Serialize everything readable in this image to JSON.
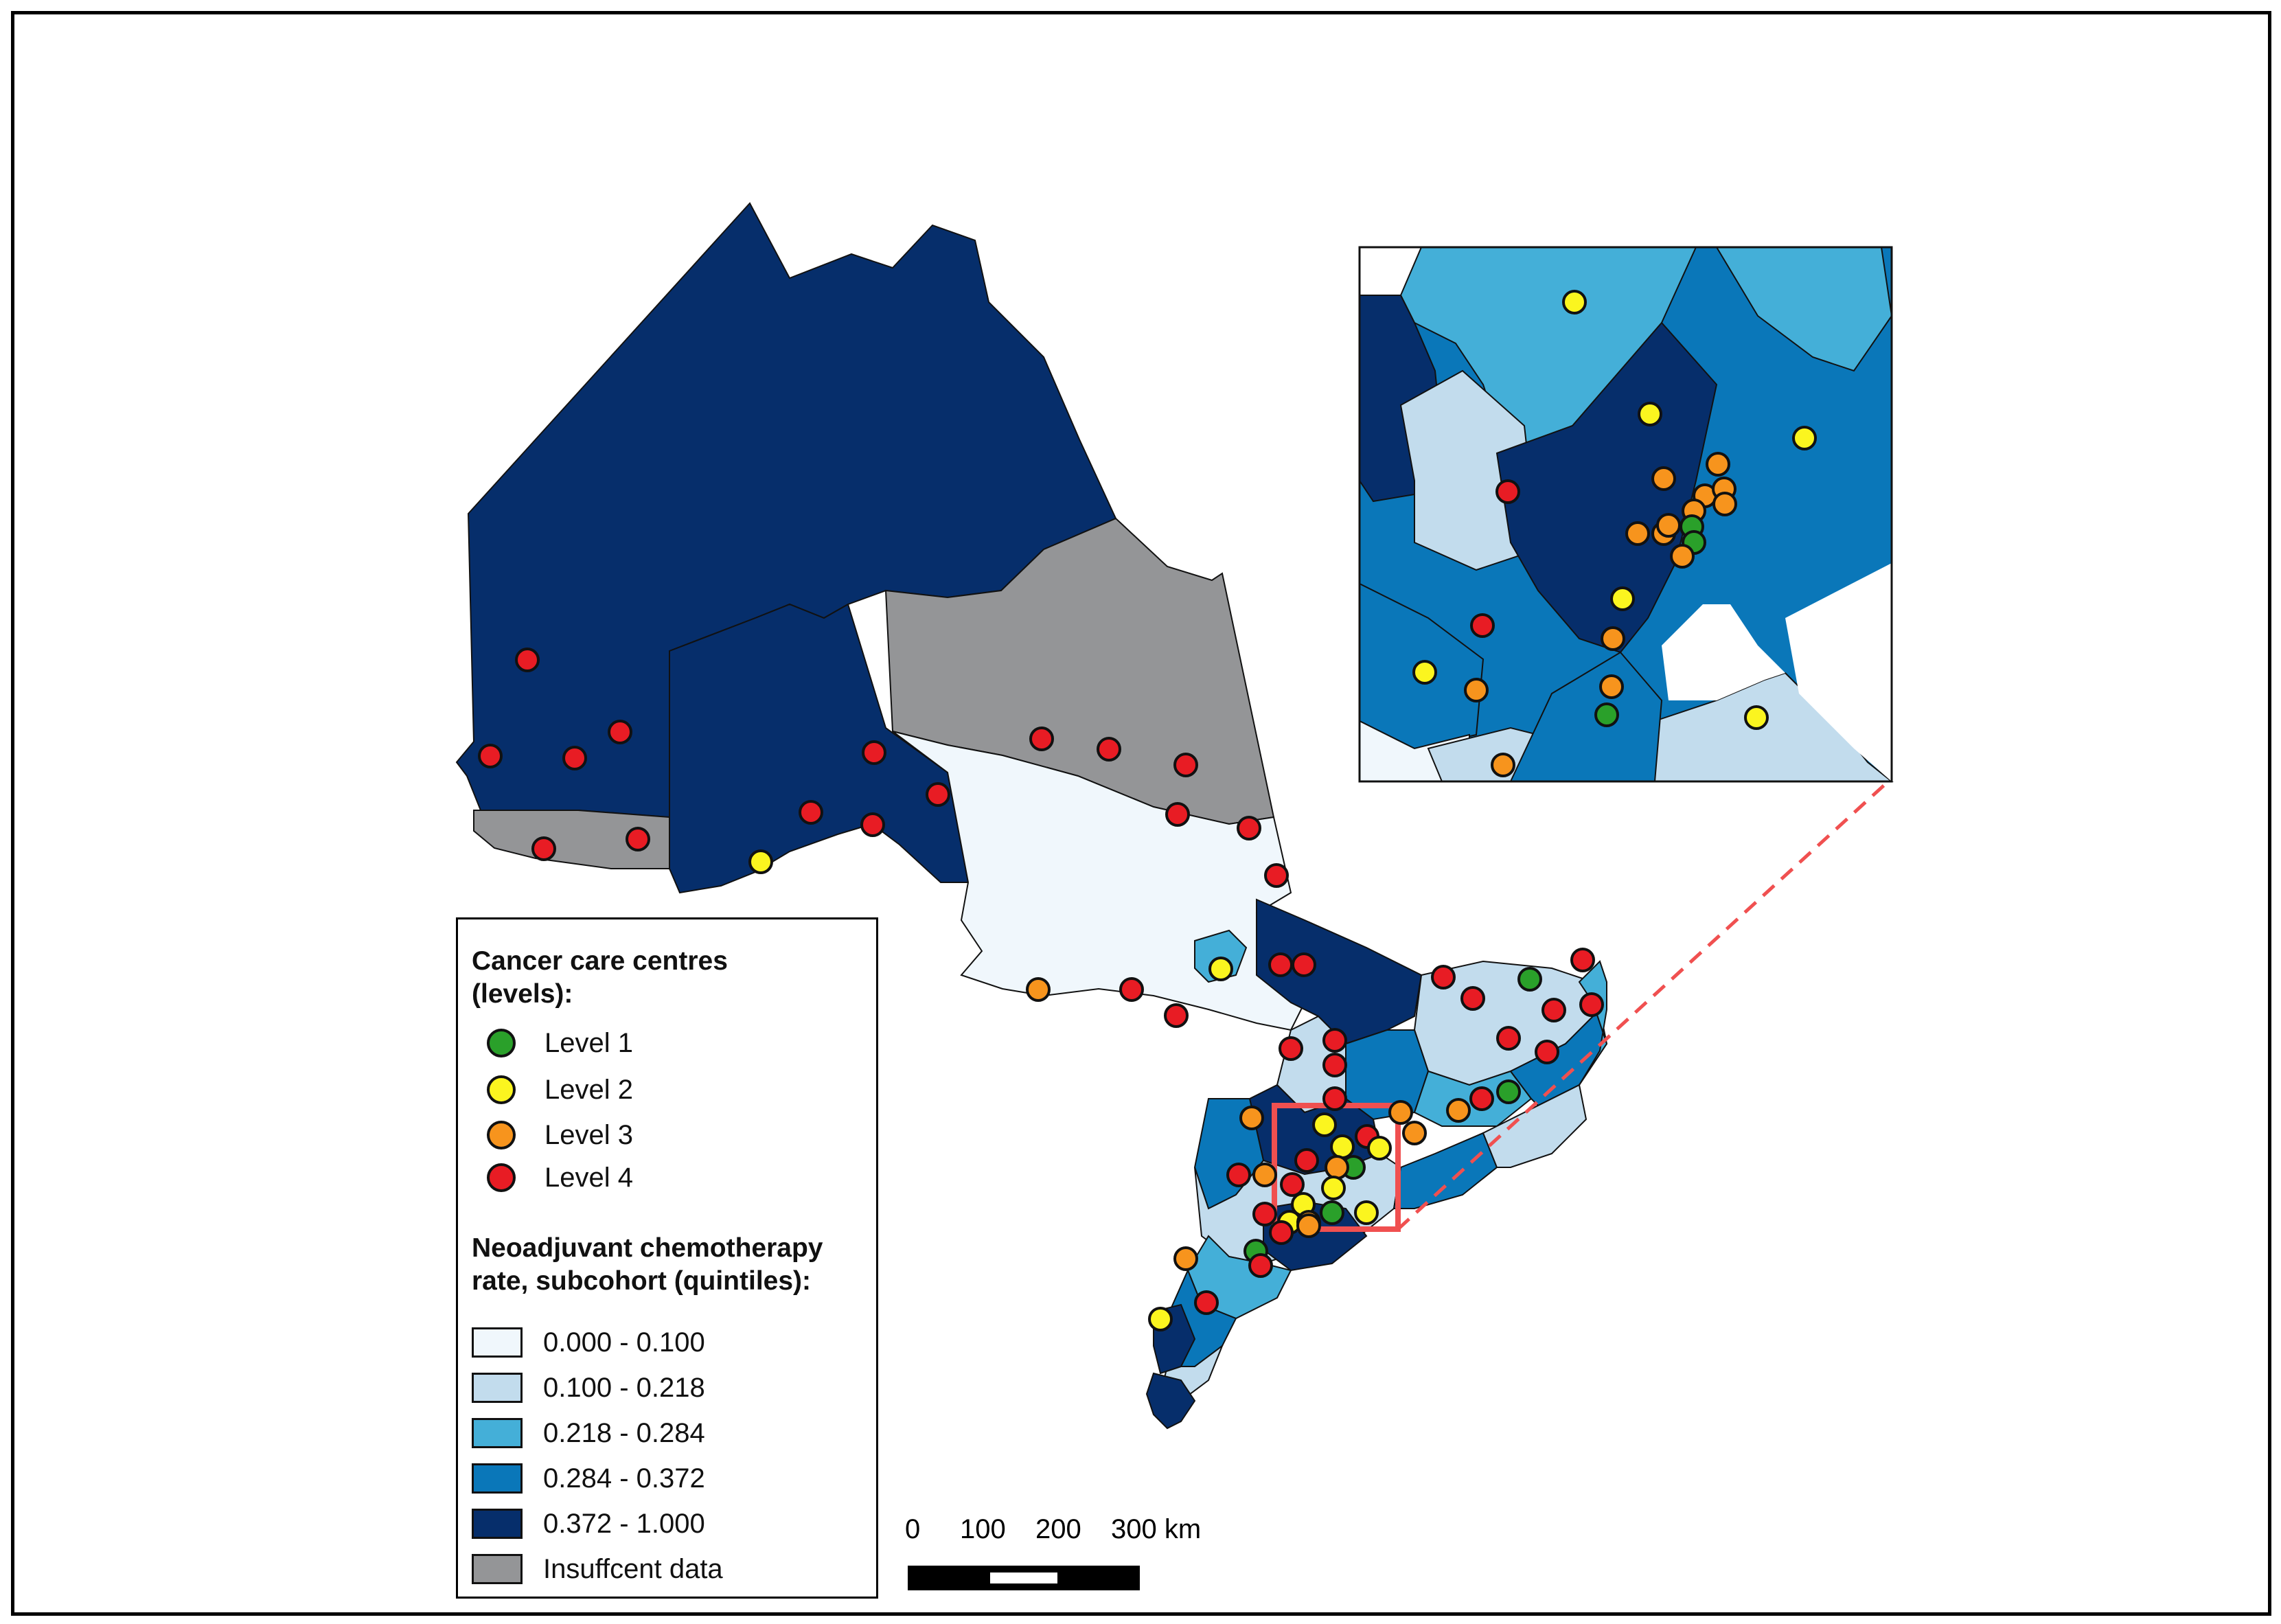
{
  "legend": {
    "centres_title_line1": "Cancer care centres",
    "centres_title_line2": "(levels):",
    "levels": [
      {
        "label": "Level 1",
        "color": "#2aa02a"
      },
      {
        "label": "Level 2",
        "color": "#fbf51f"
      },
      {
        "label": "Level 3",
        "color": "#f7941d"
      },
      {
        "label": "Level 4",
        "color": "#e81c24"
      }
    ],
    "rate_title_line1": "Neoadjuvant chemotherapy",
    "rate_title_line2": "rate, subcohort (quintiles):",
    "quintiles": [
      {
        "label": "0.000 - 0.100",
        "color": "#f0f7fc"
      },
      {
        "label": "0.100 - 0.218",
        "color": "#c2dced"
      },
      {
        "label": "0.218 - 0.284",
        "color": "#44afd8"
      },
      {
        "label": "0.284 - 0.372",
        "color": "#0a77b9"
      },
      {
        "label": "0.372 - 1.000",
        "color": "#062e6b"
      },
      {
        "label": "Insuffcent data",
        "color": "#949597"
      }
    ]
  },
  "scale_bar": {
    "labels": [
      "0",
      "100",
      "200",
      "300 km"
    ]
  },
  "colors": {
    "inset_highlight": "#f05050",
    "border": "#000000"
  }
}
